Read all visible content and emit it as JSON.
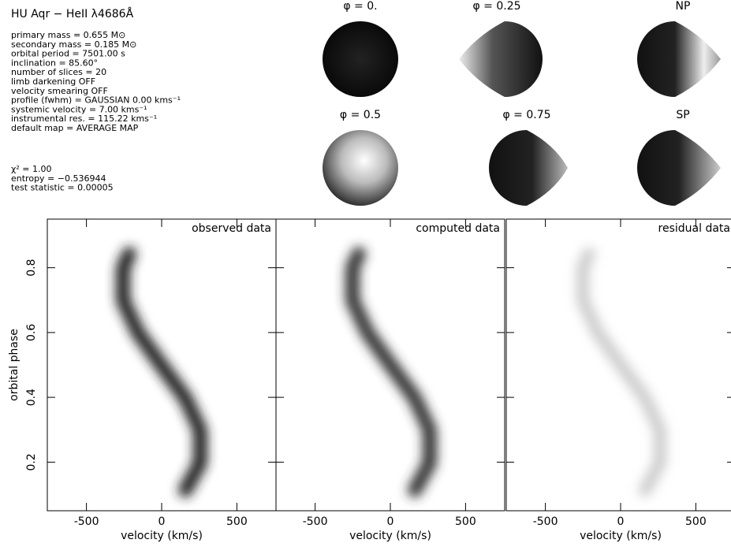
{
  "header": {
    "title": "HU Aqr − HeII λ4686Å",
    "lines": [
      "primary mass = 0.655 M⊙",
      "secondary mass = 0.185 M⊙",
      "orbital period =   7501.00 s",
      "inclination = 85.60°",
      "number of slices = 20",
      "limb darkening OFF",
      "velocity smearing OFF",
      "profile (fwhm) = GAUSSIAN 0.00 kms⁻¹",
      "systemic velocity =    7.00 kms⁻¹",
      "instrumental res. = 115.22 kms⁻¹",
      "default map = AVERAGE MAP"
    ],
    "stats": [
      "χ² =     1.00",
      "entropy = −0.536944",
      "test statistic = 0.00005"
    ]
  },
  "maps": [
    {
      "label": "φ = 0."
    },
    {
      "label": "φ = 0.25"
    },
    {
      "label": "NP"
    },
    {
      "label": "φ = 0.5"
    },
    {
      "label": "φ = 0.75"
    },
    {
      "label": "SP"
    }
  ],
  "chart_data": [
    {
      "type": "heatmap",
      "title": "observed data",
      "xlabel": "velocity (km/s)",
      "ylabel": "orbital phase",
      "xlim": [
        -760,
        760
      ],
      "ylim": [
        0.05,
        0.95
      ],
      "xticks": [
        -500,
        0,
        500
      ],
      "yticks": [
        0.2,
        0.4,
        0.6,
        0.8
      ]
    },
    {
      "type": "heatmap",
      "title": "computed data",
      "xlabel": "velocity (km/s)",
      "xlim": [
        -760,
        760
      ],
      "ylim": [
        0.05,
        0.95
      ],
      "xticks": [
        -500,
        0,
        500
      ],
      "yticks": [
        0.2,
        0.4,
        0.6,
        0.8
      ]
    },
    {
      "type": "heatmap",
      "title": "residual data",
      "xlabel": "velocity (km/s)",
      "xlim": [
        -760,
        760
      ],
      "ylim": [
        0.05,
        0.95
      ],
      "xticks": [
        -500,
        0,
        500
      ],
      "yticks": [
        0.2,
        0.4,
        0.6,
        0.8
      ]
    }
  ]
}
